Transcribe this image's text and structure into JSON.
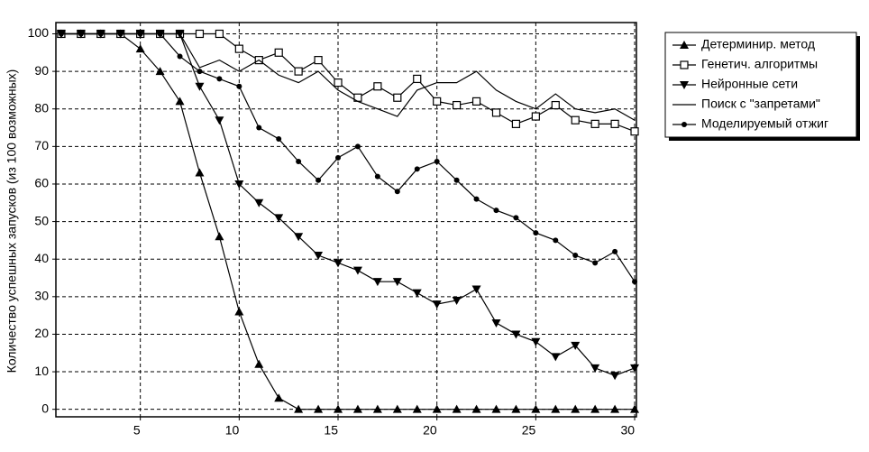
{
  "chart_data": {
    "type": "line",
    "y_label": "Количество успешных запусков (из 100 возможных)",
    "x": [
      1,
      2,
      3,
      4,
      5,
      6,
      7,
      8,
      9,
      10,
      11,
      12,
      13,
      14,
      15,
      16,
      17,
      18,
      19,
      20,
      21,
      22,
      23,
      24,
      25,
      26,
      27,
      28,
      29,
      30
    ],
    "xlim": [
      0.73,
      30.09
    ],
    "xticks": [
      5,
      10,
      15,
      20,
      25,
      30
    ],
    "ylim": [
      -2,
      103
    ],
    "yticks": [
      0,
      10,
      20,
      30,
      40,
      50,
      60,
      70,
      80,
      90,
      100
    ],
    "grid": true,
    "legend": "outside-right",
    "series": [
      {
        "name": "Детерминир. метод",
        "color": "#000000",
        "marker": "triangle-up",
        "values": [
          100,
          100,
          100,
          100,
          96,
          90,
          82,
          63,
          46,
          26,
          12,
          3,
          0,
          0,
          0,
          0,
          0,
          0,
          0,
          0,
          0,
          0,
          0,
          0,
          0,
          0,
          0,
          0,
          0,
          0
        ]
      },
      {
        "name": "Генетич. алгоритмы",
        "color": "#000000",
        "marker": "square-open",
        "values": [
          100,
          100,
          100,
          100,
          100,
          100,
          100,
          100,
          100,
          96,
          93,
          95,
          90,
          93,
          87,
          83,
          86,
          83,
          88,
          82,
          81,
          82,
          79,
          76,
          78,
          81,
          77,
          76,
          76,
          74
        ]
      },
      {
        "name": "Нейронные сети",
        "color": "#000000",
        "marker": "triangle-down",
        "values": [
          100,
          100,
          100,
          100,
          100,
          100,
          100,
          86,
          77,
          60,
          55,
          51,
          46,
          41,
          39,
          37,
          34,
          34,
          31,
          28,
          29,
          32,
          23,
          20,
          18,
          14,
          17,
          11,
          9,
          11
        ]
      },
      {
        "name": "Поиск с \"запретами\"",
        "color": "#000000",
        "marker": "none",
        "values": [
          100,
          100,
          100,
          100,
          100,
          100,
          100,
          91,
          93,
          90,
          93,
          89,
          87,
          90,
          85,
          82,
          80,
          78,
          85,
          87,
          87,
          90,
          85,
          82,
          80,
          84,
          80,
          79,
          80,
          77
        ]
      },
      {
        "name": "Моделируемый отжиг",
        "color": "#000000",
        "marker": "dot",
        "values": [
          100,
          100,
          100,
          100,
          100,
          100,
          94,
          90,
          88,
          86,
          75,
          72,
          66,
          61,
          67,
          70,
          62,
          58,
          64,
          66,
          61,
          56,
          53,
          51,
          47,
          45,
          41,
          39,
          42,
          34
        ]
      }
    ]
  }
}
